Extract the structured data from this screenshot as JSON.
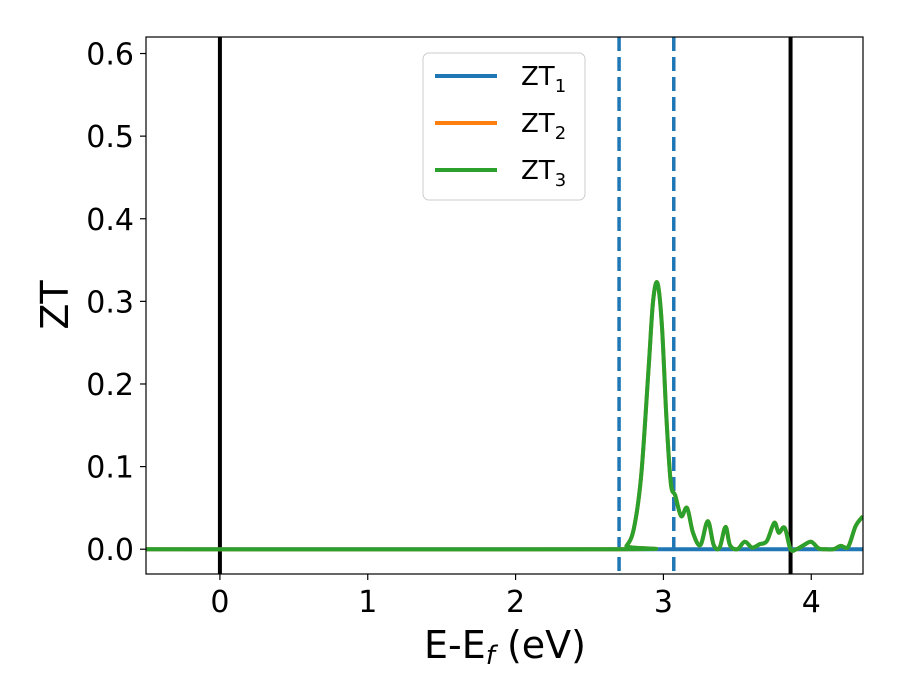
{
  "chart_data": {
    "type": "line",
    "xlabel": "E-E",
    "xlabel_sub": "f",
    "xlabel_unit": " (eV)",
    "ylabel": "ZT",
    "xlim": [
      -0.5,
      4.35
    ],
    "ylim": [
      -0.03,
      0.62
    ],
    "x_ticks": [
      0,
      1,
      2,
      3,
      4
    ],
    "x_tick_labels": [
      "0",
      "1",
      "2",
      "3",
      "4"
    ],
    "y_ticks": [
      0.0,
      0.1,
      0.2,
      0.3,
      0.4,
      0.5,
      0.6
    ],
    "y_tick_labels": [
      "0.0",
      "0.1",
      "0.2",
      "0.3",
      "0.4",
      "0.5",
      "0.6"
    ],
    "grid": false,
    "legend_position": "top-center",
    "vlines": [
      {
        "x": 0.0,
        "color": "#000000",
        "style": "solid"
      },
      {
        "x": 3.86,
        "color": "#000000",
        "style": "solid"
      },
      {
        "x": 2.7,
        "color": "#1f77b4",
        "style": "dashed"
      },
      {
        "x": 3.07,
        "color": "#1f77b4",
        "style": "dashed"
      }
    ],
    "series": [
      {
        "name": "ZT",
        "name_sub": "1",
        "color": "#1f77b4",
        "x": [
          -0.5,
          4.35
        ],
        "y": [
          0.0,
          0.0
        ]
      },
      {
        "name": "ZT",
        "name_sub": "2",
        "color": "#ff7f0e",
        "x": [
          -0.5,
          2.7,
          2.75,
          2.8,
          2.85,
          2.9,
          2.93,
          2.96,
          2.99,
          3.02,
          3.05,
          3.08,
          3.12,
          3.16,
          3.2,
          3.25,
          3.3,
          3.34,
          3.38,
          3.42,
          3.45,
          3.5,
          3.55,
          3.6,
          3.65,
          3.7,
          3.75,
          3.78,
          3.82,
          3.86,
          3.9,
          3.95,
          4.0,
          4.05,
          4.1,
          4.15,
          4.2,
          4.25,
          4.3,
          4.35
        ],
        "y": [
          0.0,
          0.0,
          0.004,
          0.025,
          0.09,
          0.22,
          0.3,
          0.322,
          0.27,
          0.16,
          0.08,
          0.065,
          0.04,
          0.05,
          0.02,
          0.005,
          0.034,
          0.005,
          0.002,
          0.027,
          0.005,
          0.0,
          0.009,
          0.002,
          0.006,
          0.01,
          0.032,
          0.02,
          0.026,
          0.0,
          0.0,
          0.005,
          0.009,
          0.001,
          0.0,
          0.0,
          0.004,
          0.003,
          0.028,
          0.04
        ]
      },
      {
        "name": "ZT",
        "name_sub": "3",
        "color": "#2ca02c",
        "x": [
          -0.5,
          2.7,
          2.75,
          2.8,
          2.85,
          2.9,
          2.93,
          2.96,
          2.99,
          3.02,
          3.05,
          3.08,
          3.12,
          3.16,
          3.2,
          3.25,
          3.3,
          3.34,
          3.38,
          3.42,
          3.45,
          3.5,
          3.55,
          3.6,
          3.65,
          3.7,
          3.75,
          3.78,
          3.82,
          3.86,
          3.9,
          3.95,
          4.0,
          4.05,
          4.1,
          4.15,
          4.2,
          4.25,
          4.3,
          4.35
        ],
        "y": [
          0.0,
          0.0,
          0.004,
          0.025,
          0.09,
          0.22,
          0.3,
          0.322,
          0.27,
          0.16,
          0.08,
          0.065,
          0.04,
          0.05,
          0.02,
          0.005,
          0.034,
          0.005,
          0.002,
          0.027,
          0.005,
          0.0,
          0.009,
          0.002,
          0.006,
          0.01,
          0.032,
          0.02,
          0.026,
          0.0,
          0.0,
          0.005,
          0.009,
          0.001,
          0.0,
          0.0,
          0.004,
          0.003,
          0.028,
          0.04
        ]
      }
    ]
  }
}
